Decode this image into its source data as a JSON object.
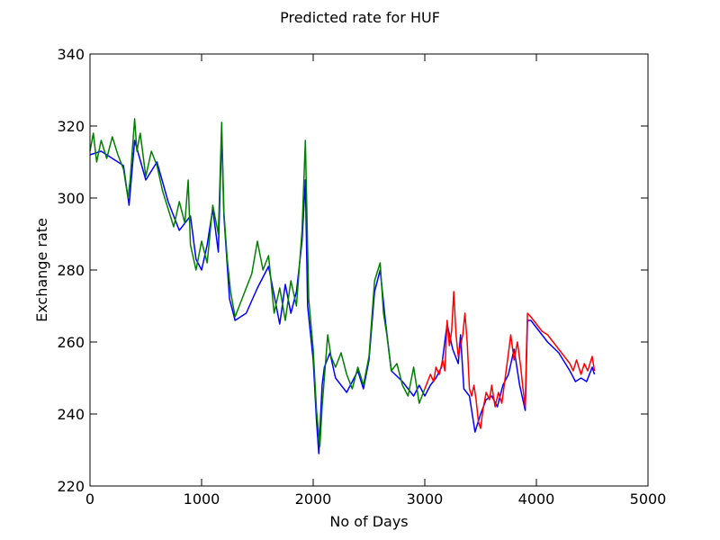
{
  "chart_data": {
    "type": "line",
    "title": "Predicted rate for HUF",
    "xlabel": "No of Days",
    "ylabel": "Exchange rate",
    "xlim": [
      0,
      5000
    ],
    "ylim": [
      220,
      340
    ],
    "xticks": [
      0,
      1000,
      2000,
      3000,
      4000,
      5000
    ],
    "yticks": [
      220,
      240,
      260,
      280,
      300,
      320,
      340
    ],
    "grid": false,
    "series": [
      {
        "color": "#0000ff",
        "x": [
          0,
          100,
          200,
          300,
          350,
          400,
          500,
          600,
          700,
          800,
          900,
          950,
          1000,
          1050,
          1100,
          1150,
          1180,
          1200,
          1250,
          1300,
          1400,
          1500,
          1600,
          1700,
          1750,
          1800,
          1850,
          1900,
          1930,
          1950,
          2000,
          2030,
          2050,
          2080,
          2100,
          2150,
          2200,
          2300,
          2400,
          2450,
          2500,
          2550,
          2600,
          2650,
          2700,
          2800,
          2900,
          2950,
          3000,
          3050,
          3100,
          3150,
          3200,
          3250,
          3300,
          3320,
          3350,
          3400,
          3450,
          3500,
          3550,
          3600,
          3650,
          3700,
          3750,
          3800,
          3850,
          3900,
          3920,
          3950,
          4000,
          4100,
          4200,
          4300,
          4350,
          4400,
          4450,
          4500,
          4520
        ],
        "y": [
          312,
          313,
          311,
          309,
          298,
          316,
          305,
          310,
          299,
          291,
          295,
          283,
          280,
          287,
          297,
          285,
          318,
          295,
          272,
          266,
          268,
          275,
          281,
          265,
          276,
          268,
          274,
          288,
          305,
          270,
          255,
          238,
          229,
          248,
          253,
          257,
          250,
          246,
          252,
          247,
          255,
          274,
          280,
          265,
          252,
          249,
          245,
          248,
          245,
          248,
          250,
          253,
          265,
          258,
          254,
          262,
          247,
          245,
          235,
          240,
          244,
          245,
          242,
          248,
          251,
          258,
          248,
          241,
          266,
          266,
          264,
          260,
          257,
          252,
          249,
          250,
          249,
          253,
          251
        ]
      },
      {
        "color": "#008000",
        "x": [
          0,
          30,
          60,
          100,
          150,
          200,
          250,
          300,
          340,
          360,
          400,
          420,
          450,
          500,
          550,
          600,
          650,
          700,
          750,
          800,
          850,
          880,
          900,
          950,
          1000,
          1050,
          1100,
          1150,
          1180,
          1200,
          1230,
          1260,
          1300,
          1350,
          1400,
          1450,
          1500,
          1550,
          1600,
          1650,
          1700,
          1750,
          1800,
          1850,
          1900,
          1930,
          1960,
          2000,
          2030,
          2060,
          2080,
          2100,
          2130,
          2160,
          2200,
          2250,
          2300,
          2350,
          2400,
          2450,
          2500,
          2550,
          2600,
          2630,
          2660,
          2700,
          2750,
          2800,
          2850,
          2900,
          2950,
          3000
        ],
        "y": [
          313,
          318,
          310,
          316,
          311,
          317,
          312,
          308,
          300,
          305,
          322,
          313,
          318,
          306,
          313,
          309,
          302,
          297,
          292,
          299,
          293,
          305,
          287,
          280,
          288,
          282,
          298,
          290,
          321,
          296,
          283,
          274,
          267,
          271,
          275,
          279,
          288,
          280,
          284,
          268,
          275,
          266,
          277,
          270,
          291,
          316,
          272,
          258,
          241,
          231,
          242,
          250,
          262,
          256,
          253,
          257,
          251,
          247,
          253,
          248,
          256,
          277,
          282,
          268,
          262,
          252,
          254,
          248,
          245,
          253,
          243,
          247
        ]
      },
      {
        "color": "#ff0000",
        "x": [
          3000,
          3050,
          3080,
          3100,
          3130,
          3160,
          3180,
          3200,
          3220,
          3240,
          3260,
          3280,
          3300,
          3320,
          3340,
          3360,
          3380,
          3400,
          3420,
          3440,
          3460,
          3480,
          3500,
          3520,
          3550,
          3580,
          3600,
          3630,
          3660,
          3690,
          3720,
          3750,
          3770,
          3800,
          3830,
          3860,
          3880,
          3900,
          3910,
          3920,
          3950,
          4000,
          4050,
          4100,
          4150,
          4200,
          4250,
          4300,
          4330,
          4360,
          4400,
          4430,
          4460,
          4500,
          4520
        ],
        "y": [
          247,
          251,
          249,
          253,
          251,
          255,
          252,
          266,
          259,
          263,
          274,
          262,
          256,
          259,
          262,
          268,
          260,
          247,
          245,
          248,
          244,
          238,
          236,
          241,
          246,
          244,
          248,
          242,
          246,
          243,
          250,
          257,
          262,
          255,
          260,
          253,
          247,
          242,
          256,
          268,
          267,
          265,
          263,
          262,
          260,
          258,
          256,
          254,
          252,
          255,
          251,
          254,
          252,
          256,
          252
        ]
      }
    ]
  }
}
